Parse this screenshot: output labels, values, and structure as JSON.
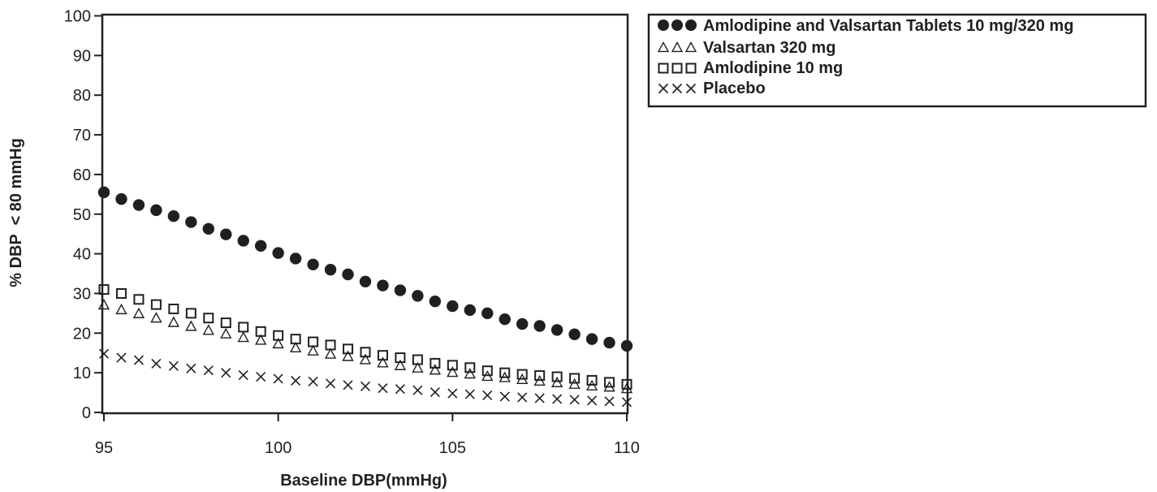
{
  "chart_data": {
    "type": "scatter",
    "title": "",
    "xlabel": "Baseline DBP(mmHg)",
    "ylabel": "% DBP  < 80 mmHg",
    "xlim": [
      95,
      110
    ],
    "ylim": [
      0,
      100
    ],
    "xticks": [
      95,
      100,
      105,
      110
    ],
    "yticks": [
      0,
      10,
      20,
      30,
      40,
      50,
      60,
      70,
      80,
      90,
      100
    ],
    "grid": false,
    "legend_position": "right",
    "x": [
      95,
      95.5,
      96,
      96.5,
      97,
      97.5,
      98,
      98.5,
      99,
      99.5,
      100,
      100.5,
      101,
      101.5,
      102,
      102.5,
      103,
      103.5,
      104,
      104.5,
      105,
      105.5,
      106,
      106.5,
      107,
      107.5,
      108,
      108.5,
      109,
      109.5,
      110
    ],
    "series": [
      {
        "name": "Amlodipine and Valsartan Tablets 10 mg/320 mg",
        "marker": "filled-circle",
        "values": [
          55.5,
          53.8,
          52.3,
          51.0,
          49.5,
          48.0,
          46.3,
          44.9,
          43.3,
          42.0,
          40.2,
          38.8,
          37.3,
          36.0,
          34.8,
          33.0,
          32.0,
          30.8,
          29.4,
          28.0,
          26.8,
          25.8,
          25.0,
          23.5,
          22.3,
          21.8,
          20.8,
          19.7,
          18.5,
          17.6,
          16.8
        ]
      },
      {
        "name": "Valsartan 320 mg",
        "marker": "open-triangle",
        "values": [
          27.0,
          25.8,
          24.8,
          23.7,
          22.6,
          21.6,
          20.6,
          19.7,
          18.8,
          18.1,
          17.2,
          16.2,
          15.4,
          14.6,
          14.0,
          13.2,
          12.4,
          11.7,
          11.1,
          10.6,
          10.0,
          9.6,
          9.0,
          8.7,
          8.2,
          7.8,
          7.4,
          7.0,
          6.6,
          6.3,
          5.9
        ]
      },
      {
        "name": "Amlodipine 10 mg",
        "marker": "open-square",
        "values": [
          31.0,
          30.0,
          28.5,
          27.2,
          26.1,
          25.0,
          23.8,
          22.6,
          21.5,
          20.4,
          19.4,
          18.5,
          17.8,
          17.0,
          16.0,
          15.2,
          14.4,
          13.8,
          13.3,
          12.4,
          11.9,
          11.3,
          10.5,
          10.0,
          9.6,
          9.3,
          9.0,
          8.6,
          8.1,
          7.6,
          7.1
        ]
      },
      {
        "name": "Placebo",
        "marker": "cross",
        "values": [
          14.8,
          13.8,
          13.2,
          12.3,
          11.7,
          11.1,
          10.6,
          10.0,
          9.4,
          9.0,
          8.5,
          8.0,
          7.8,
          7.3,
          6.9,
          6.6,
          6.1,
          5.9,
          5.6,
          5.1,
          4.8,
          4.6,
          4.3,
          4.0,
          3.8,
          3.6,
          3.4,
          3.2,
          3.0,
          2.8,
          2.6
        ]
      }
    ]
  },
  "colors": {
    "ink": "#231f20",
    "background": "#ffffff"
  }
}
